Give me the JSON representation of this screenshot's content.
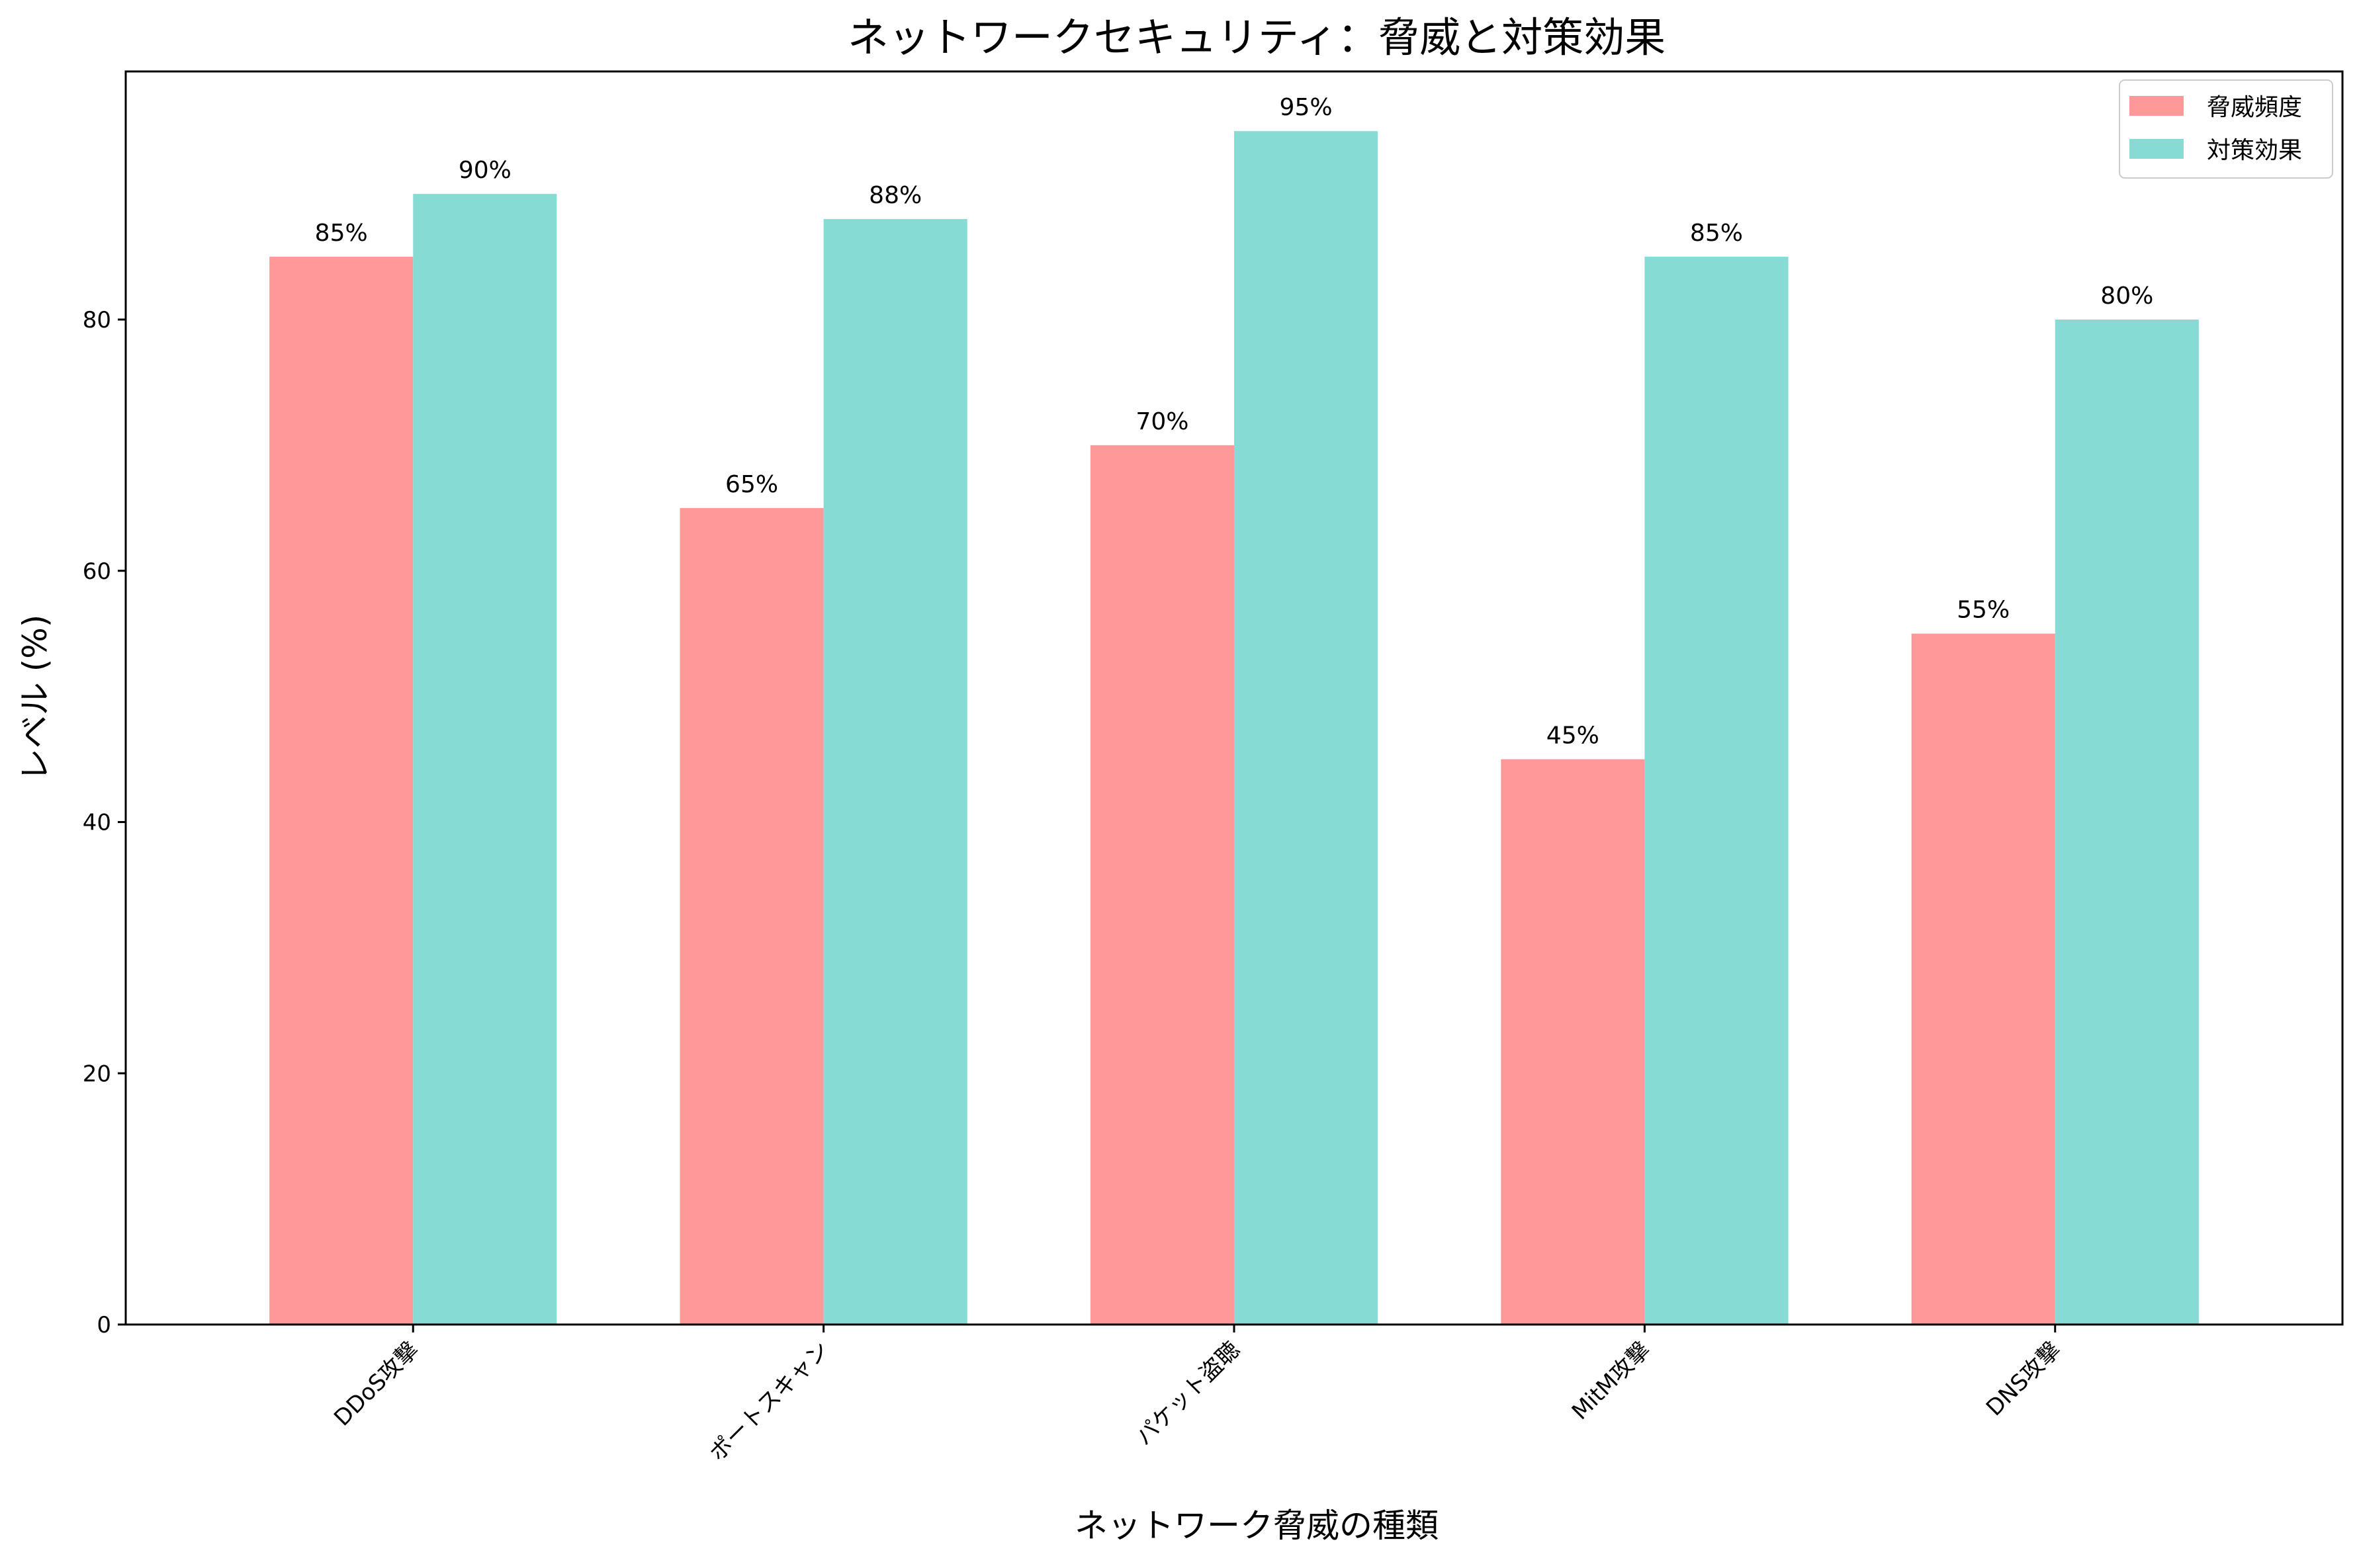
{
  "chart_data": {
    "type": "bar",
    "title": "ネットワークセキュリティ：脅威と対策効果",
    "xlabel": "ネットワーク脅威の種類",
    "ylabel": "レベル (%)",
    "categories": [
      "DDoS攻撃",
      "ポートスキャン",
      "パケット盗聴",
      "MitM攻撃",
      "DNS攻撃"
    ],
    "series": [
      {
        "name": "脅威頻度",
        "values": [
          85,
          65,
          70,
          45,
          55
        ],
        "labels": [
          "85%",
          "65%",
          "70%",
          "45%",
          "55%"
        ],
        "color": "#ff9999"
      },
      {
        "name": "対策効果",
        "values": [
          90,
          88,
          95,
          85,
          80
        ],
        "labels": [
          "90%",
          "88%",
          "95%",
          "85%",
          "80%"
        ],
        "color": "#86dbd4"
      }
    ],
    "ylim": [
      0,
      99.75
    ],
    "yticks": [
      "0",
      "20",
      "40",
      "60",
      "80"
    ],
    "grid": false,
    "legend_position": "top-right"
  }
}
